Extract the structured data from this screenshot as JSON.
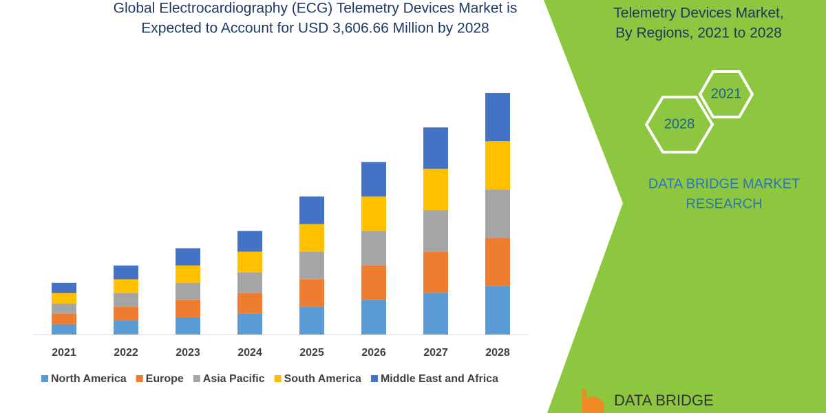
{
  "chart_data": {
    "type": "stacked_bar",
    "title": [
      "Global Electrocardiography (ECG) Telemetry Devices Market is",
      "Expected to Account for USD 3,606.66 Million by 2028"
    ],
    "categories": [
      "2021",
      "2022",
      "2023",
      "2024",
      "2025",
      "2026",
      "2027",
      "2028"
    ],
    "series": [
      {
        "name": "North America",
        "color": "#5b9bd5",
        "values": [
          15,
          20,
          25,
          30,
          40,
          50,
          60,
          70
        ]
      },
      {
        "name": "Europe",
        "color": "#ed7d31",
        "values": [
          15,
          20,
          25,
          30,
          40,
          50,
          60,
          70
        ]
      },
      {
        "name": "Asia Pacific",
        "color": "#a5a5a5",
        "values": [
          15,
          20,
          25,
          30,
          40,
          50,
          60,
          70
        ]
      },
      {
        "name": "South America",
        "color": "#ffc000",
        "values": [
          15,
          20,
          25,
          30,
          40,
          50,
          60,
          70
        ]
      },
      {
        "name": "Middle East and Africa",
        "color": "#4472c4",
        "values": [
          15,
          20,
          25,
          30,
          40,
          50,
          60,
          70
        ]
      }
    ],
    "legend": "bottom"
  },
  "panel": {
    "heading": [
      "Telemetry Devices Market,",
      "By Regions, 2021 to 2028"
    ],
    "hexagons": [
      "2021",
      "2028"
    ],
    "brand": [
      "DATA BRIDGE MARKET",
      "RESEARCH"
    ],
    "logo": "DATA BRIDGE"
  }
}
